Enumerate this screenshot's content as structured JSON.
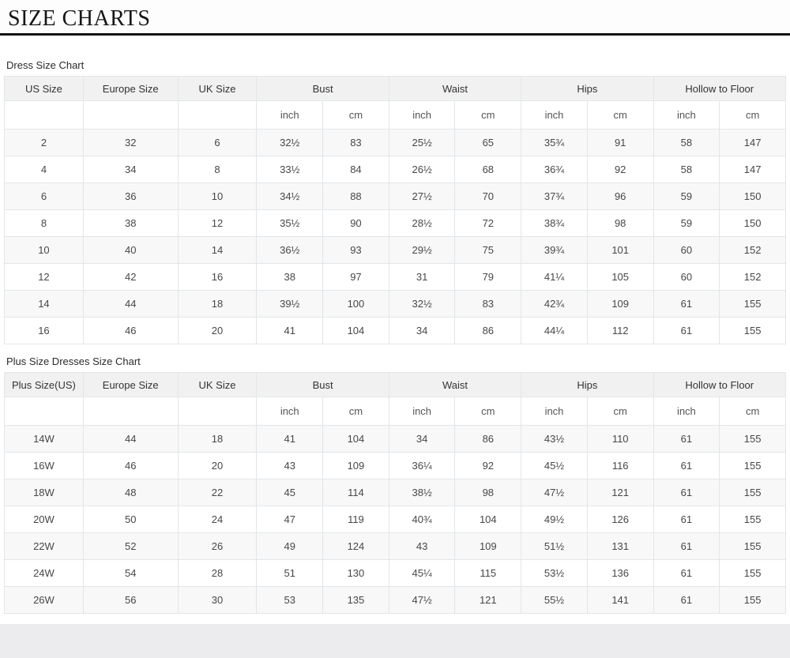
{
  "header": {
    "title": "SIZE CHARTS"
  },
  "tables": [
    {
      "caption": "Dress Size Chart",
      "size_columns": [
        "US Size",
        "Europe Size",
        "UK Size"
      ],
      "measure_columns": [
        "Bust",
        "Waist",
        "Hips",
        "Hollow to Floor"
      ],
      "unit_labels": [
        "inch",
        "cm"
      ],
      "rows": [
        [
          "2",
          "32",
          "6",
          "32½",
          "83",
          "25½",
          "65",
          "35¾",
          "91",
          "58",
          "147"
        ],
        [
          "4",
          "34",
          "8",
          "33½",
          "84",
          "26½",
          "68",
          "36¾",
          "92",
          "58",
          "147"
        ],
        [
          "6",
          "36",
          "10",
          "34½",
          "88",
          "27½",
          "70",
          "37¾",
          "96",
          "59",
          "150"
        ],
        [
          "8",
          "38",
          "12",
          "35½",
          "90",
          "28½",
          "72",
          "38¾",
          "98",
          "59",
          "150"
        ],
        [
          "10",
          "40",
          "14",
          "36½",
          "93",
          "29½",
          "75",
          "39¾",
          "101",
          "60",
          "152"
        ],
        [
          "12",
          "42",
          "16",
          "38",
          "97",
          "31",
          "79",
          "41¼",
          "105",
          "60",
          "152"
        ],
        [
          "14",
          "44",
          "18",
          "39½",
          "100",
          "32½",
          "83",
          "42¾",
          "109",
          "61",
          "155"
        ],
        [
          "16",
          "46",
          "20",
          "41",
          "104",
          "34",
          "86",
          "44¼",
          "112",
          "61",
          "155"
        ]
      ]
    },
    {
      "caption": "Plus Size Dresses Size Chart",
      "size_columns": [
        "Plus Size(US)",
        "Europe Size",
        "UK Size"
      ],
      "measure_columns": [
        "Bust",
        "Waist",
        "Hips",
        "Hollow to Floor"
      ],
      "unit_labels": [
        "inch",
        "cm"
      ],
      "rows": [
        [
          "14W",
          "44",
          "18",
          "41",
          "104",
          "34",
          "86",
          "43½",
          "110",
          "61",
          "155"
        ],
        [
          "16W",
          "46",
          "20",
          "43",
          "109",
          "36¼",
          "92",
          "45½",
          "116",
          "61",
          "155"
        ],
        [
          "18W",
          "48",
          "22",
          "45",
          "114",
          "38½",
          "98",
          "47½",
          "121",
          "61",
          "155"
        ],
        [
          "20W",
          "50",
          "24",
          "47",
          "119",
          "40¾",
          "104",
          "49½",
          "126",
          "61",
          "155"
        ],
        [
          "22W",
          "52",
          "26",
          "49",
          "124",
          "43",
          "109",
          "51½",
          "131",
          "61",
          "155"
        ],
        [
          "24W",
          "54",
          "28",
          "51",
          "130",
          "45¼",
          "115",
          "53½",
          "136",
          "61",
          "155"
        ],
        [
          "26W",
          "56",
          "30",
          "53",
          "135",
          "47½",
          "121",
          "55½",
          "141",
          "61",
          "155"
        ]
      ]
    }
  ]
}
